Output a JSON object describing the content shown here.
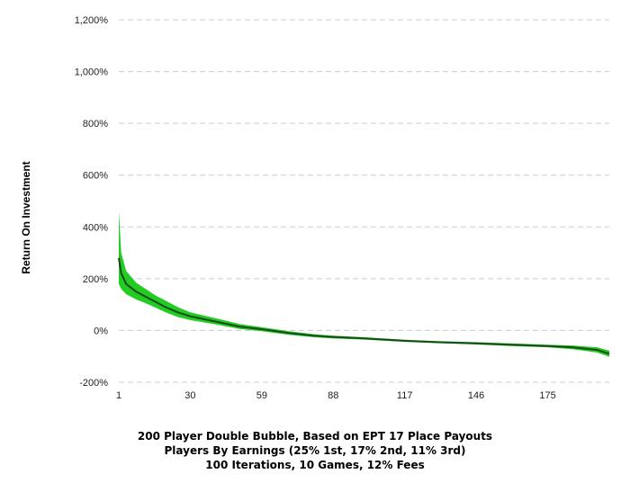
{
  "chart_data": {
    "type": "line",
    "title": "",
    "xlabel": "",
    "ylabel": "Return On Investment",
    "x_ticks": [
      "1",
      "30",
      "59",
      "88",
      "117",
      "146",
      "175"
    ],
    "y_ticks": [
      "1,200%",
      "1,000%",
      "800%",
      "600%",
      "400%",
      "200%",
      "0%",
      "-200%"
    ],
    "ylim": [
      -200,
      1200
    ],
    "xlim": [
      1,
      200
    ],
    "grid": "horizontal-dashed",
    "band_color": "#22cc22",
    "line_color": "#1a4a1a",
    "series": [
      {
        "x": [
          1,
          2,
          4,
          8,
          12,
          16,
          20,
          25,
          30,
          40,
          50,
          59,
          70,
          80,
          88,
          100,
          117,
          130,
          146,
          160,
          175,
          185,
          195,
          200
        ],
        "mean": [
          280,
          220,
          180,
          150,
          130,
          110,
          90,
          70,
          55,
          35,
          15,
          5,
          -10,
          -20,
          -25,
          -30,
          -40,
          -45,
          -50,
          -55,
          -60,
          -65,
          -75,
          -90
        ],
        "upper": [
          460,
          300,
          230,
          185,
          160,
          135,
          115,
          90,
          70,
          48,
          25,
          13,
          -3,
          -14,
          -20,
          -26,
          -36,
          -41,
          -45,
          -50,
          -55,
          -58,
          -65,
          -78
        ],
        "lower": [
          180,
          160,
          140,
          120,
          105,
          88,
          70,
          52,
          40,
          24,
          6,
          -3,
          -17,
          -26,
          -31,
          -35,
          -44,
          -49,
          -54,
          -60,
          -65,
          -72,
          -85,
          -102
        ]
      }
    ]
  },
  "caption": {
    "line1": "200 Player Double Bubble, Based on EPT 17 Place Payouts",
    "line2": "Players By Earnings (25% 1st, 17% 2nd, 11% 3rd)",
    "line3": "100 Iterations, 10 Games, 12% Fees"
  }
}
